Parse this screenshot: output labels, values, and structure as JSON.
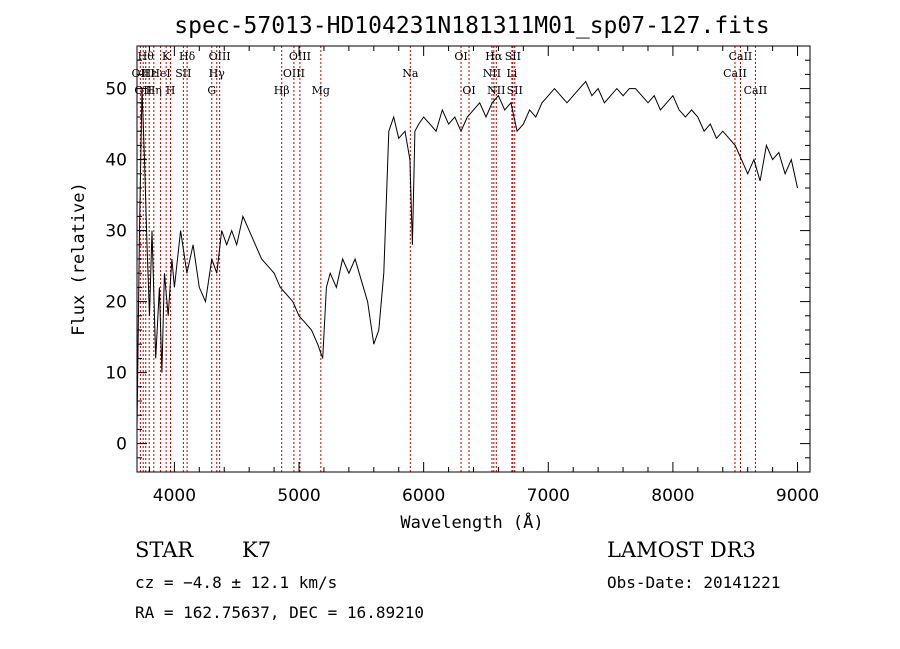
{
  "chart_data": {
    "type": "line",
    "title": "spec-57013-HD104231N181311M01_sp07-127.fits",
    "xlabel": "Wavelength (Å)",
    "ylabel": "Flux (relative)",
    "xlim": [
      3700,
      9100
    ],
    "ylim": [
      -4,
      56
    ],
    "xticks": [
      4000,
      5000,
      6000,
      7000,
      8000,
      9000
    ],
    "yticks": [
      0,
      10,
      20,
      30,
      40,
      50
    ],
    "xtick_labels": [
      "4000",
      "5000",
      "6000",
      "7000",
      "8000",
      "9000"
    ],
    "ytick_labels": [
      "0",
      "10",
      "20",
      "30",
      "40",
      "50"
    ],
    "grid": false,
    "series": [
      {
        "x": [
          3700,
          3720,
          3740,
          3760,
          3780,
          3800,
          3820,
          3850,
          3880,
          3900,
          3920,
          3950,
          3980,
          4000,
          4050,
          4100,
          4150,
          4200,
          4250,
          4300,
          4340,
          4380,
          4420,
          4460,
          4500,
          4550,
          4600,
          4650,
          4700,
          4750,
          4800,
          4850,
          4900,
          4950,
          5000,
          5050,
          5100,
          5150,
          5190,
          5220,
          5250,
          5300,
          5350,
          5400,
          5450,
          5500,
          5550,
          5600,
          5640,
          5680,
          5720,
          5760,
          5800,
          5850,
          5890,
          5910,
          5930,
          5960,
          6000,
          6050,
          6100,
          6150,
          6200,
          6250,
          6300,
          6350,
          6400,
          6450,
          6500,
          6550,
          6600,
          6650,
          6700,
          6750,
          6800,
          6850,
          6900,
          6950,
          7000,
          7050,
          7100,
          7150,
          7200,
          7250,
          7300,
          7350,
          7400,
          7450,
          7500,
          7550,
          7600,
          7650,
          7700,
          7750,
          7800,
          7850,
          7900,
          7950,
          8000,
          8050,
          8100,
          8150,
          8200,
          8250,
          8300,
          8350,
          8400,
          8450,
          8500,
          8550,
          8600,
          8650,
          8700,
          8750,
          8800,
          8850,
          8900,
          8950,
          9000
        ],
        "values": [
          2,
          30,
          50,
          40,
          28,
          18,
          30,
          12,
          22,
          10,
          24,
          18,
          26,
          22,
          30,
          24,
          28,
          22,
          20,
          26,
          24,
          30,
          28,
          30,
          28,
          32,
          30,
          28,
          26,
          25,
          24,
          22,
          21,
          20,
          18,
          17,
          16,
          14,
          12,
          22,
          24,
          22,
          26,
          24,
          26,
          23,
          20,
          14,
          16,
          24,
          44,
          46,
          43,
          44,
          40,
          28,
          44,
          45,
          46,
          45,
          44,
          47,
          45,
          46,
          44,
          46,
          47,
          48,
          46,
          48,
          49,
          47,
          48,
          44,
          45,
          47,
          46,
          48,
          49,
          50,
          49,
          48,
          49,
          50,
          51,
          49,
          50,
          48,
          49,
          50,
          49,
          50,
          50,
          49,
          48,
          49,
          47,
          48,
          49,
          47,
          46,
          47,
          46,
          44,
          45,
          43,
          44,
          43,
          42,
          40,
          38,
          40,
          37,
          42,
          40,
          41,
          38,
          40,
          36
        ]
      }
    ],
    "lines": [
      {
        "wl": 3727,
        "label": "OII",
        "row": 2
      },
      {
        "wl": 3750,
        "label": "OII",
        "row": 3
      },
      {
        "wl": 3770,
        "label": "Hθ",
        "row": 1
      },
      {
        "wl": 3798,
        "label": "Hε",
        "row": 2
      },
      {
        "wl": 3835,
        "label": "Hη",
        "row": 3
      },
      {
        "wl": 3889,
        "label": "HeI",
        "row": 2
      },
      {
        "wl": 3934,
        "label": "K",
        "row": 1
      },
      {
        "wl": 3969,
        "label": "H",
        "row": 3
      },
      {
        "wl": 4072,
        "label": "SII",
        "row": 2
      },
      {
        "wl": 4102,
        "label": "Hδ",
        "row": 1
      },
      {
        "wl": 4300,
        "label": "G",
        "row": 3
      },
      {
        "wl": 4340,
        "label": "Hγ",
        "row": 2
      },
      {
        "wl": 4363,
        "label": "OIII",
        "row": 1
      },
      {
        "wl": 4861,
        "label": "Hβ",
        "row": 3
      },
      {
        "wl": 4959,
        "label": "OIII",
        "row": 2
      },
      {
        "wl": 5007,
        "label": "OIII",
        "row": 1
      },
      {
        "wl": 5175,
        "label": "Mg",
        "row": 3
      },
      {
        "wl": 5893,
        "label": "Na",
        "row": 2
      },
      {
        "wl": 6300,
        "label": "OI",
        "row": 1
      },
      {
        "wl": 6364,
        "label": "OI",
        "row": 3
      },
      {
        "wl": 6548,
        "label": "NII",
        "row": 2
      },
      {
        "wl": 6563,
        "label": "Hα",
        "row": 1
      },
      {
        "wl": 6583,
        "label": "NII",
        "row": 3
      },
      {
        "wl": 6708,
        "label": "Li",
        "row": 2
      },
      {
        "wl": 6716,
        "label": "SII",
        "row": 1
      },
      {
        "wl": 6731,
        "label": "SII",
        "row": 3
      },
      {
        "wl": 8498,
        "label": "CaII",
        "row": 2
      },
      {
        "wl": 8542,
        "label": "CaII",
        "row": 1
      },
      {
        "wl": 8662,
        "label": "CaII",
        "row": 3
      }
    ]
  },
  "info": {
    "object_class": "STAR",
    "subclass": "K7",
    "cz": "cz = −4.8 ± 12.1 km/s",
    "coords": "RA = 162.75637, DEC =  16.89210",
    "survey": "LAMOST DR3",
    "obs_date": "Obs-Date: 20141221"
  }
}
